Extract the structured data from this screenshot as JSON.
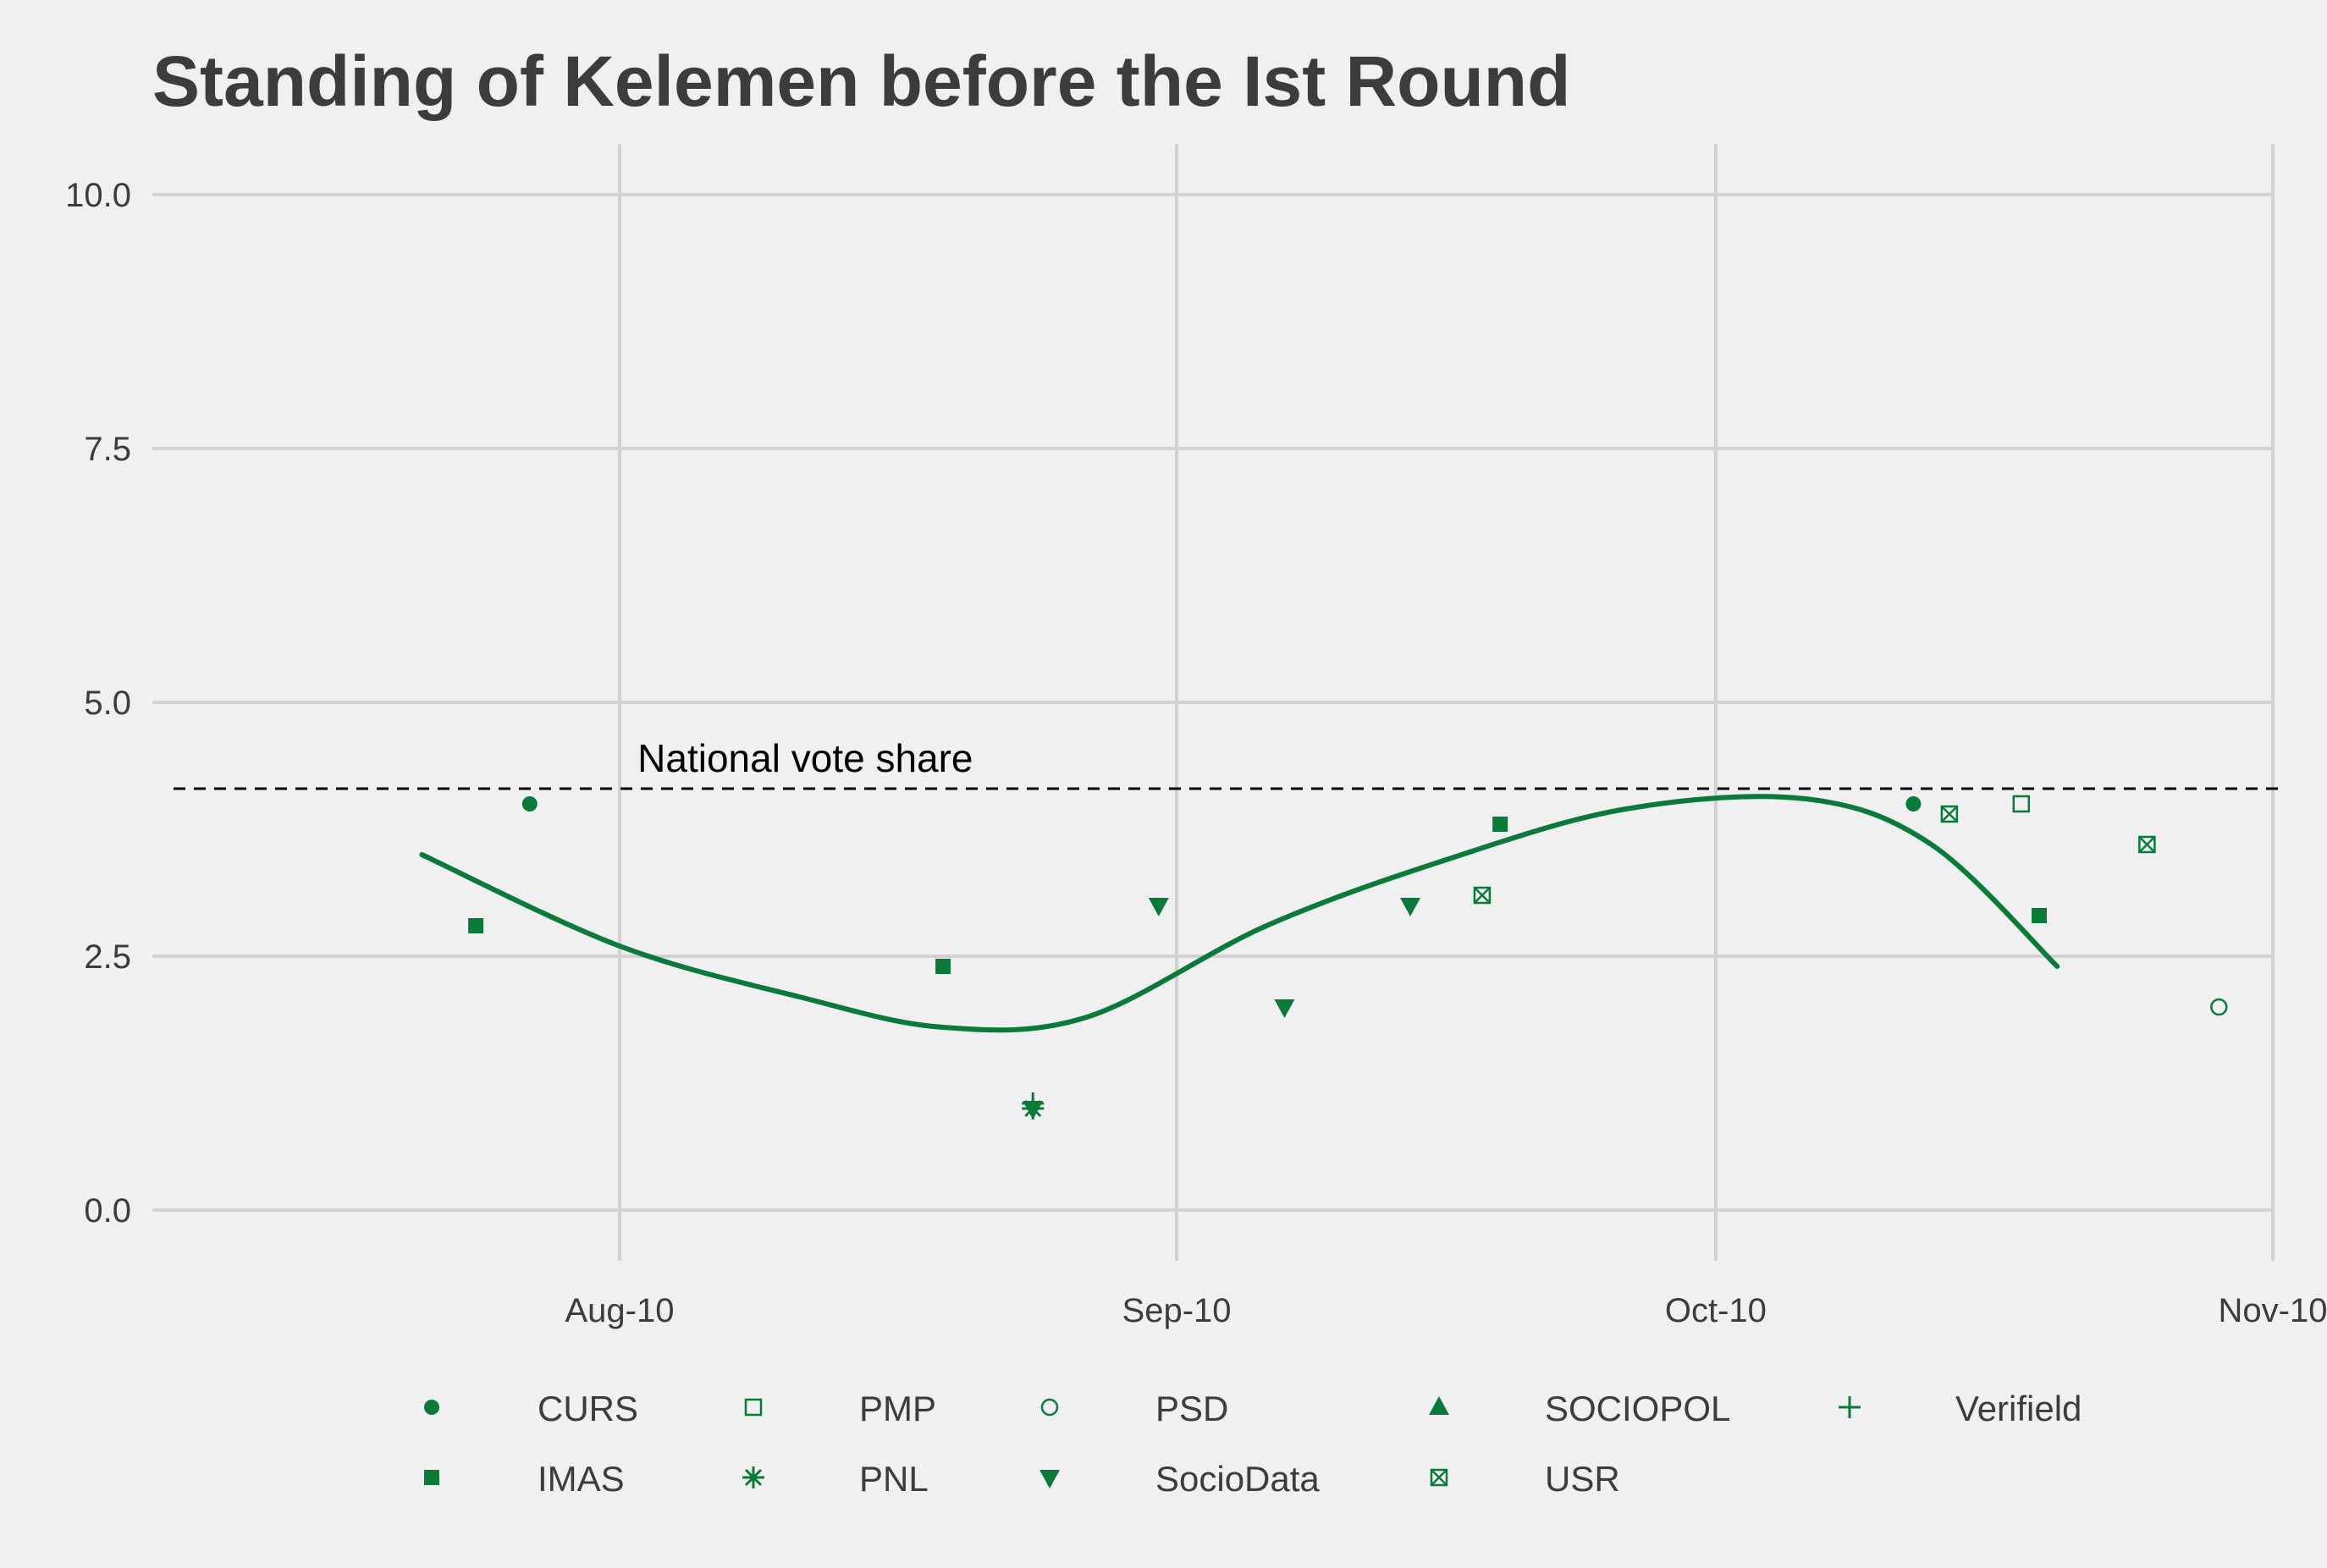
{
  "chart_data": {
    "type": "scatter",
    "title": "Standing of Kelemen before the Ist Round",
    "xlabel": "",
    "ylabel": "",
    "x_range": [
      "2016-07-15",
      "2016-11-10"
    ],
    "ylim": [
      -0.5,
      10.5
    ],
    "x_ticks": [
      {
        "date": "2016-08-10",
        "label": "Aug-10"
      },
      {
        "date": "2016-09-10",
        "label": "Sep-10"
      },
      {
        "date": "2016-10-10",
        "label": "Oct-10"
      },
      {
        "date": "2016-11-10",
        "label": "Nov-10"
      }
    ],
    "y_ticks": [
      {
        "value": 0,
        "label": "0.0"
      },
      {
        "value": 2.5,
        "label": "2.5"
      },
      {
        "value": 5,
        "label": "5.0"
      },
      {
        "value": 7.5,
        "label": "7.5"
      },
      {
        "value": 10,
        "label": "10.0"
      }
    ],
    "grid": true,
    "color": "#0a7a3a",
    "reference_line": {
      "y": 4.15,
      "label": "National vote share",
      "style": "dashed"
    },
    "trend_line": {
      "type": "smooth",
      "x": [
        "2016-07-30",
        "2016-08-10",
        "2016-08-20",
        "2016-08-28",
        "2016-09-05",
        "2016-09-15",
        "2016-09-25",
        "2016-10-05",
        "2016-10-15",
        "2016-10-22",
        "2016-10-29"
      ],
      "y": [
        3.5,
        2.6,
        2.1,
        1.8,
        1.9,
        2.8,
        3.45,
        3.95,
        4.05,
        3.6,
        2.4
      ]
    },
    "series": [
      {
        "name": "CURS",
        "marker": "circle-filled",
        "points": [
          {
            "x": "2016-08-05",
            "y": 4.0
          },
          {
            "x": "2016-10-21",
            "y": 4.0
          }
        ]
      },
      {
        "name": "PMP",
        "marker": "square-open",
        "points": [
          {
            "x": "2016-10-27",
            "y": 4.0
          }
        ]
      },
      {
        "name": "PSD",
        "marker": "circle-open",
        "points": [
          {
            "x": "2016-11-07",
            "y": 2.0
          }
        ]
      },
      {
        "name": "SOCIOPOL",
        "marker": "triangle-up",
        "points": []
      },
      {
        "name": "Verifield",
        "marker": "plus",
        "points": [
          {
            "x": "2016-09-02",
            "y": 1.05
          }
        ]
      },
      {
        "name": "IMAS",
        "marker": "square-filled",
        "points": [
          {
            "x": "2016-08-02",
            "y": 2.8
          },
          {
            "x": "2016-08-28",
            "y": 2.4
          },
          {
            "x": "2016-09-28",
            "y": 3.8
          },
          {
            "x": "2016-10-28",
            "y": 2.9
          }
        ]
      },
      {
        "name": "PNL",
        "marker": "asterisk",
        "points": [
          {
            "x": "2016-09-02",
            "y": 1.0
          }
        ]
      },
      {
        "name": "SocioData",
        "marker": "triangle-down",
        "points": [
          {
            "x": "2016-09-02",
            "y": 1.0
          },
          {
            "x": "2016-09-09",
            "y": 3.0
          },
          {
            "x": "2016-09-16",
            "y": 2.0
          },
          {
            "x": "2016-09-23",
            "y": 3.0
          }
        ]
      },
      {
        "name": "USR",
        "marker": "square-cross",
        "points": [
          {
            "x": "2016-09-27",
            "y": 3.1
          },
          {
            "x": "2016-10-23",
            "y": 3.9
          },
          {
            "x": "2016-11-03",
            "y": 3.6
          }
        ]
      }
    ],
    "legend": {
      "position": "bottom",
      "order": [
        "CURS",
        "PMP",
        "PSD",
        "SOCIOPOL",
        "Verifield",
        "IMAS",
        "PNL",
        "SocioData",
        "USR"
      ]
    }
  }
}
